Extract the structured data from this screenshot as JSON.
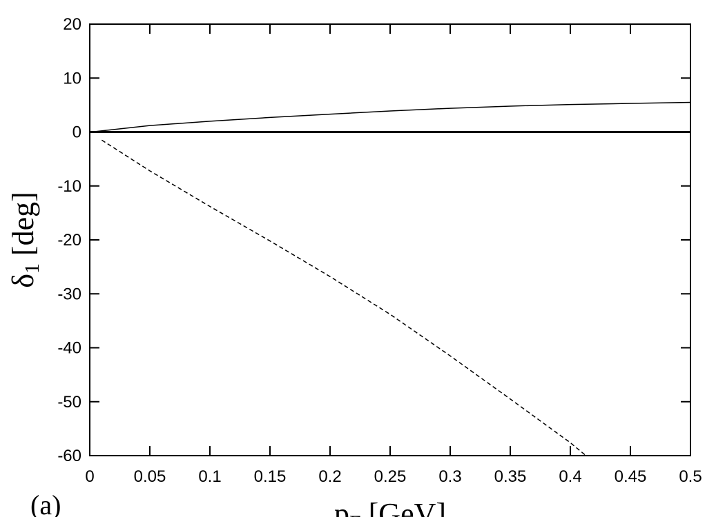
{
  "chart_data": {
    "type": "line",
    "ylabel": {
      "symbol": "δ",
      "subscript": "1",
      "unit": " [deg]"
    },
    "xlabel": {
      "symbol": "p",
      "subscript": "F",
      "unit": " [GeV]"
    },
    "annotation": "(a)",
    "xlim": [
      0,
      0.5
    ],
    "ylim": [
      -60,
      20
    ],
    "xticks": [
      0,
      0.05,
      0.1,
      0.15,
      0.2,
      0.25,
      0.3,
      0.35,
      0.4,
      0.45,
      0.5
    ],
    "yticks": [
      -60,
      -50,
      -40,
      -30,
      -20,
      -10,
      0,
      10,
      20
    ],
    "zero_line": true,
    "series": [
      {
        "color": "#000000",
        "dash": "solid",
        "x": [
          0.005,
          0.05,
          0.1,
          0.15,
          0.2,
          0.25,
          0.3,
          0.35,
          0.4,
          0.45,
          0.5
        ],
        "values": [
          0.1,
          1.2,
          2.0,
          2.7,
          3.3,
          3.9,
          4.4,
          4.8,
          5.1,
          5.3,
          5.5
        ]
      },
      {
        "color": "#000000",
        "dash": "dashed",
        "x": [
          0.01,
          0.05,
          0.1,
          0.15,
          0.2,
          0.25,
          0.3,
          0.35,
          0.4,
          0.413
        ],
        "values": [
          -1.5,
          -7.2,
          -13.8,
          -20.2,
          -26.8,
          -33.8,
          -41.5,
          -49.5,
          -57.6,
          -60
        ]
      }
    ]
  }
}
